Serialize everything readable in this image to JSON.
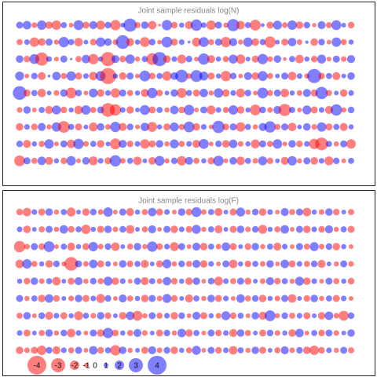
{
  "chart_data": [
    {
      "type": "bubble",
      "title": "Joint sample residuals log(N)",
      "positive_color": "#0000ff",
      "negative_color": "#ff0000",
      "values": [
        [
          1.5,
          1.8,
          -1.2,
          2.0,
          -1.6,
          -2.0,
          1.3,
          -1.0,
          2.1,
          -1.5,
          1.7,
          -1.9,
          1.4,
          -2.2,
          1.0,
          2.8,
          -1.3,
          1.6,
          -1.8,
          -0.6,
          2.2,
          -1.4,
          1.1,
          -1.7,
          2.4,
          1.2,
          -2.0,
          1.5,
          -1.1,
          2.6,
          -1.8,
          1.3,
          -2.3,
          0.8,
          -1.5,
          1.9,
          -1.2,
          2.0,
          -1.6,
          1.4,
          -0.9,
          1.7,
          -1.3,
          2.1,
          1.0,
          -1.4
        ],
        [
          -1.3,
          1.2,
          -2.0,
          -1.6,
          1.5,
          -1.1,
          2.2,
          1.3,
          -1.8,
          1.0,
          -1.4,
          2.0,
          1.6,
          -1.2,
          2.9,
          -1.7,
          1.1,
          -2.1,
          1.4,
          -1.0,
          2.3,
          -1.5,
          1.2,
          0.6,
          -1.9,
          2.1,
          -1.3,
          1.5,
          -2.2,
          1.7,
          -1.1,
          2.0,
          -1.6,
          1.3,
          -2.4,
          1.0,
          -1.5,
          1.8,
          -1.2,
          0.7,
          -1.6,
          1.4,
          -1.0,
          2.0,
          -1.3,
          1.1
        ],
        [
          1.6,
          -1.4,
          2.1,
          -2.8,
          1.2,
          -1.0,
          1.5,
          0.5,
          -1.3,
          1.8,
          -2.2,
          1.1,
          -3.0,
          1.7,
          -1.4,
          2.0,
          -1.1,
          1.3,
          -2.5,
          3.0,
          -1.6,
          1.2,
          -1.9,
          1.4,
          -1.0,
          2.4,
          -1.7,
          1.1,
          -1.3,
          1.9,
          -2.0,
          1.0,
          -1.5,
          2.2,
          -1.2,
          1.6,
          -0.8,
          1.3,
          -1.8,
          1.1,
          -1.4,
          1.9,
          -1.0,
          1.5,
          -1.2,
          1.7
        ],
        [
          1.9,
          -1.0,
          1.4,
          -1.7,
          0.6,
          1.8,
          -1.3,
          2.0,
          -1.5,
          1.2,
          -1.8,
          2.1,
          -3.4,
          1.1,
          -1.6,
          1.5,
          -1.0,
          2.3,
          -1.4,
          1.3,
          -2.0,
          1.6,
          2.7,
          -1.2,
          2.5,
          1.9,
          -1.5,
          1.1,
          -2.2,
          1.4,
          -1.0,
          1.7,
          -1.6,
          2.1,
          -1.3,
          1.0,
          1.5,
          -1.8,
          1.2,
          -1.1,
          3.0,
          -1.4,
          1.3,
          -1.7,
          1.0,
          1.6
        ],
        [
          2.9,
          -1.5,
          1.3,
          -1.8,
          1.0,
          -1.2,
          1.6,
          -2.3,
          1.4,
          -1.0,
          1.9,
          -1.6,
          1.2,
          -2.0,
          1.5,
          -1.3,
          1.1,
          -1.7,
          2.2,
          -1.4,
          1.0,
          1.6,
          -2.1,
          1.3,
          -1.5,
          1.8,
          -1.1,
          2.0,
          -1.6,
          1.2,
          -1.9,
          1.4,
          -1.0,
          2.3,
          -1.3,
          1.5,
          -1.8,
          1.1,
          -1.2,
          1.7,
          -1.5,
          2.6,
          -1.3,
          1.0,
          -1.6,
          1.2
        ],
        [
          -1.2,
          1.6,
          -1.0,
          1.3,
          -1.7,
          1.9,
          -1.4,
          1.1,
          -1.8,
          2.0,
          -1.3,
          1.5,
          -2.9,
          -2.4,
          1.2,
          -1.6,
          1.0,
          2.1,
          -1.5,
          1.3,
          -1.1,
          1.8,
          -1.4,
          2.2,
          -1.0,
          1.5,
          -1.9,
          1.2,
          -1.3,
          2.0,
          -1.6,
          1.1,
          -2.3,
          1.4,
          -1.2,
          1.7,
          -2.6,
          1.3,
          -1.0,
          1.9,
          -1.5,
          1.2,
          -1.7,
          2.4,
          -1.1,
          1.4
        ],
        [
          -1.6,
          1.2,
          -1.4,
          1.7,
          -1.1,
          2.0,
          -2.5,
          1.3,
          -1.5,
          1.0,
          -1.9,
          1.6,
          -1.2,
          2.2,
          -1.7,
          1.4,
          -1.0,
          1.8,
          -2.1,
          1.1,
          -1.5,
          1.9,
          -1.3,
          2.3,
          -1.6,
          1.2,
          -1.0,
          2.6,
          -1.4,
          1.5,
          -2.0,
          1.3,
          -1.1,
          1.7,
          2.4,
          -1.3,
          1.5,
          -1.8,
          1.0,
          1.6,
          -1.2,
          2.0,
          -1.5,
          1.3,
          -1.7,
          1.1
        ],
        [
          1.4,
          -1.7,
          1.1,
          -1.3,
          2.0,
          -1.0,
          1.5,
          -1.8,
          2.2,
          -1.2,
          1.3,
          -1.6,
          1.0,
          -2.3,
          1.7,
          -1.4,
          1.2,
          -2.0,
          -1.5,
          1.6,
          -1.1,
          1.9,
          -1.3,
          1.2,
          -1.7,
          2.1,
          -1.0,
          1.4,
          -1.6,
          1.8,
          -1.2,
          1.1,
          -1.9,
          1.5,
          -1.3,
          2.0,
          -1.0,
          1.6,
          -1.4,
          1.2,
          -2.2,
          -2.7,
          1.3,
          -1.1,
          1.5,
          -2.0
        ],
        [
          -2.3,
          1.5,
          -1.3,
          1.8,
          -1.7,
          1.1,
          -1.4,
          2.0,
          -1.0,
          1.6,
          -1.9,
          1.2,
          -1.5,
          2.4,
          -1.2,
          1.3,
          -1.8,
          1.0,
          -1.6,
          2.1,
          -1.1,
          1.4,
          -2.0,
          1.7,
          -1.3,
          1.1,
          -1.5,
          2.2,
          -1.0,
          1.6,
          -1.8,
          1.3,
          -1.2,
          1.9,
          -1.4,
          1.0,
          -1.7,
          2.0,
          -1.1,
          1.5,
          -1.6,
          1.2,
          -1.9,
          1.4,
          -1.0,
          1.3
        ]
      ]
    },
    {
      "type": "bubble",
      "title": "Joint sample residuals log(F)",
      "positive_color": "#0000ff",
      "negative_color": "#ff0000",
      "values": [
        [
          -1.4,
          -1.8,
          1.2,
          -1.5,
          1.6,
          -1.1,
          1.3,
          -1.9,
          1.0,
          -1.6,
          1.4,
          -1.2,
          2.0,
          -1.0,
          1.5,
          -1.7,
          1.1,
          -1.3,
          1.8,
          -1.5,
          1.2,
          -1.0,
          1.6,
          -1.4,
          2.1,
          -1.2,
          1.3,
          -1.7,
          1.0,
          -1.5,
          1.9,
          -1.1,
          1.4,
          -1.6,
          1.2,
          -1.0,
          1.7,
          -1.3,
          1.5,
          -1.8,
          1.1,
          -1.2,
          1.6,
          -1.4,
          1.0,
          -1.3
        ],
        [
          1.2,
          -1.6,
          1.0,
          -1.3,
          1.5,
          -1.1,
          1.8,
          -1.4,
          1.3,
          -2.0,
          1.1,
          -1.5,
          1.6,
          -1.2,
          1.4,
          -1.8,
          1.0,
          -1.3,
          1.7,
          -1.0,
          1.5,
          -1.6,
          1.2,
          -1.4,
          1.9,
          -1.1,
          1.3,
          -1.7,
          1.0,
          -1.5,
          1.6,
          -1.2,
          1.4,
          -1.9,
          1.1,
          -1.3,
          1.8,
          -1.0,
          1.5,
          -1.6,
          1.2,
          -1.4,
          1.7,
          -1.1,
          1.3,
          -1.5
        ],
        [
          -2.4,
          -1.2,
          1.5,
          -1.4,
          2.3,
          -1.0,
          1.3,
          -1.7,
          1.1,
          -1.5,
          2.0,
          -1.2,
          1.4,
          -1.8,
          1.0,
          -1.3,
          1.6,
          -1.1,
          2.2,
          -1.4,
          1.2,
          -1.9,
          1.5,
          -1.0,
          1.7,
          -1.6,
          1.3,
          -1.2,
          1.8,
          -1.5,
          1.0,
          -1.4,
          1.6,
          -1.1,
          1.3,
          -1.7,
          1.2,
          -1.0,
          1.5,
          -1.3,
          1.9,
          -1.2,
          1.4,
          -1.6,
          1.1,
          -1.0
        ],
        [
          -1.8,
          2.0,
          -1.3,
          1.1,
          -1.6,
          1.4,
          -1.0,
          -2.9,
          1.5,
          -1.2,
          1.8,
          -1.5,
          1.2,
          -1.0,
          1.6,
          -1.4,
          1.3,
          -1.7,
          1.0,
          -1.5,
          1.9,
          -1.1,
          1.4,
          -1.3,
          1.7,
          -1.6,
          1.2,
          -1.0,
          1.5,
          -1.8,
          1.1,
          -1.4,
          1.3,
          -1.2,
          1.6,
          -1.0,
          1.8,
          -1.5,
          1.2,
          -1.3,
          1.4,
          -1.7,
          1.0,
          -1.1,
          1.5,
          -1.2
        ],
        [
          1.1,
          -1.4,
          1.6,
          -1.2,
          1.3,
          -1.8,
          1.0,
          -1.5,
          1.7,
          -1.1,
          1.4,
          -1.3,
          1.9,
          -1.6,
          1.2,
          -1.0,
          1.5,
          -1.7,
          1.3,
          -1.2,
          1.8,
          -1.4,
          1.1,
          -1.6,
          1.6,
          -1.0,
          1.4,
          -1.9,
          1.2,
          -1.3,
          1.5,
          -1.5,
          1.0,
          -1.2,
          1.7,
          -1.4,
          1.3,
          -1.1,
          1.9,
          -1.6,
          1.2,
          -1.0,
          1.5,
          -1.3,
          1.1,
          -1.4
        ],
        [
          1.5,
          -1.1,
          1.3,
          -1.6,
          1.8,
          -1.4,
          1.0,
          -1.2,
          1.6,
          -1.5,
          1.2,
          -1.9,
          1.4,
          -1.0,
          1.7,
          -1.3,
          1.1,
          -1.6,
          1.5,
          -1.2,
          1.9,
          -1.4,
          1.0,
          -1.7,
          1.3,
          -1.1,
          1.6,
          -1.5,
          1.2,
          -1.0,
          1.8,
          -1.3,
          1.4,
          -1.6,
          1.1,
          -1.2,
          1.5,
          -1.8,
          1.0,
          -1.4,
          1.6,
          -1.1,
          1.3,
          -1.5,
          1.2,
          -1.0
        ],
        [
          -1.3,
          1.6,
          -1.0,
          1.4,
          -1.7,
          1.2,
          -1.5,
          1.1,
          -1.9,
          1.3,
          -1.2,
          1.6,
          -1.4,
          1.0,
          -1.6,
          1.8,
          -2.1,
          -1.1,
          1.5,
          -1.3,
          1.2,
          -1.6,
          1.4,
          -1.0,
          1.7,
          -1.5,
          1.1,
          -1.2,
          1.9,
          -1.4,
          1.3,
          -1.0,
          1.6,
          -1.7,
          2.3,
          -1.1,
          1.4,
          -1.3,
          1.2,
          -1.5,
          1.0,
          -1.6,
          1.8,
          -1.2,
          -2.1,
          1.4
        ],
        [
          1.2,
          -1.5,
          1.0,
          -1.3,
          1.6,
          -1.1,
          1.4,
          -1.8,
          1.2,
          -1.0,
          1.5,
          -1.6,
          2.2,
          -1.4,
          1.1,
          -1.3,
          1.7,
          -1.2,
          1.0,
          -1.5,
          1.4,
          -1.1,
          1.8,
          -1.6,
          1.3,
          -1.0,
          1.5,
          -1.4,
          1.2,
          -1.7,
          1.6,
          -1.3,
          1.0,
          -1.5,
          1.4,
          -1.2,
          1.1,
          -1.6,
          1.8,
          -1.0,
          1.3,
          -1.4,
          1.5,
          -1.2,
          1.0,
          1.6
        ],
        [
          -1.6,
          -1.2,
          -1.5,
          -2.0,
          1.4,
          -1.7,
          1.2,
          -1.3,
          1.5,
          -1.0,
          1.8,
          -1.4,
          1.3,
          -2.2,
          1.6,
          -1.1,
          1.0,
          -1.5,
          1.7,
          -1.2,
          1.4,
          -1.6,
          1.1,
          -1.3,
          1.9,
          -1.0,
          1.5,
          -1.4,
          1.2,
          -1.8,
          1.3,
          -1.1,
          1.6,
          -1.5,
          1.0,
          -1.3,
          1.7,
          -1.2,
          1.4,
          -1.6,
          -2.0,
          -1.4,
          1.2,
          -1.1,
          1.5,
          -1.3
        ]
      ],
      "legend": [
        -4,
        -3,
        -2,
        -1,
        0,
        1,
        2,
        3,
        4
      ]
    }
  ]
}
